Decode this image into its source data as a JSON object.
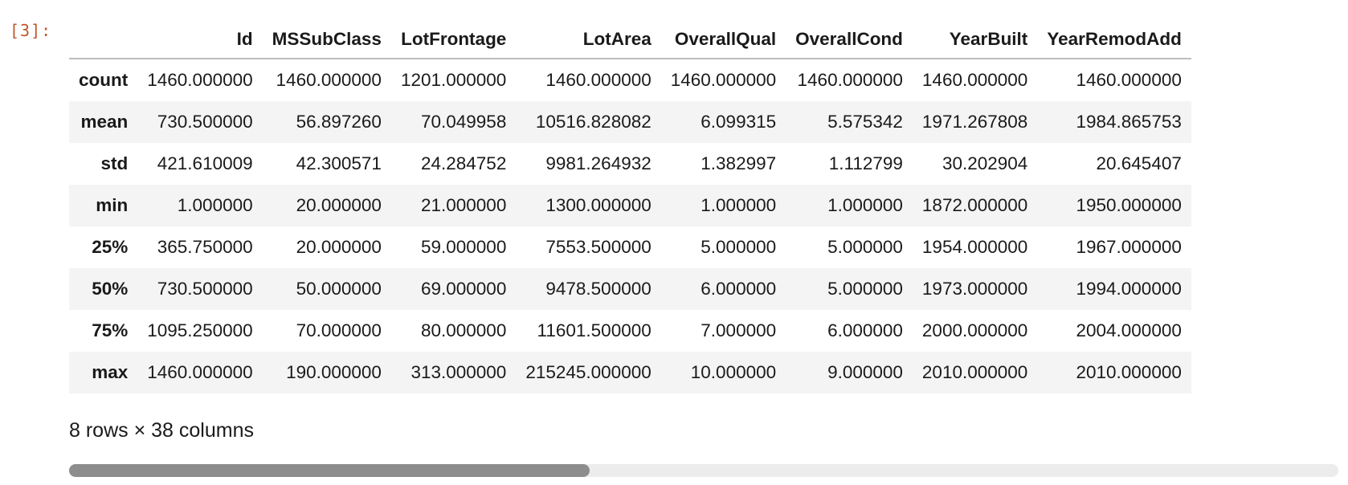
{
  "cell": {
    "prompt": "[3]:"
  },
  "table": {
    "index_header": "",
    "columns": [
      "Id",
      "MSSubClass",
      "LotFrontage",
      "LotArea",
      "OverallQual",
      "OverallCond",
      "YearBuilt",
      "YearRemodAdd"
    ],
    "rows": [
      {
        "label": "count",
        "values": [
          "1460.000000",
          "1460.000000",
          "1201.000000",
          "1460.000000",
          "1460.000000",
          "1460.000000",
          "1460.000000",
          "1460.000000"
        ]
      },
      {
        "label": "mean",
        "values": [
          "730.500000",
          "56.897260",
          "70.049958",
          "10516.828082",
          "6.099315",
          "5.575342",
          "1971.267808",
          "1984.865753"
        ]
      },
      {
        "label": "std",
        "values": [
          "421.610009",
          "42.300571",
          "24.284752",
          "9981.264932",
          "1.382997",
          "1.112799",
          "30.202904",
          "20.645407"
        ]
      },
      {
        "label": "min",
        "values": [
          "1.000000",
          "20.000000",
          "21.000000",
          "1300.000000",
          "1.000000",
          "1.000000",
          "1872.000000",
          "1950.000000"
        ]
      },
      {
        "label": "25%",
        "values": [
          "365.750000",
          "20.000000",
          "59.000000",
          "7553.500000",
          "5.000000",
          "5.000000",
          "1954.000000",
          "1967.000000"
        ]
      },
      {
        "label": "50%",
        "values": [
          "730.500000",
          "50.000000",
          "69.000000",
          "9478.500000",
          "6.000000",
          "5.000000",
          "1973.000000",
          "1994.000000"
        ]
      },
      {
        "label": "75%",
        "values": [
          "1095.250000",
          "70.000000",
          "80.000000",
          "11601.500000",
          "7.000000",
          "6.000000",
          "2000.000000",
          "2004.000000"
        ]
      },
      {
        "label": "max",
        "values": [
          "1460.000000",
          "190.000000",
          "313.000000",
          "215245.000000",
          "10.000000",
          "9.000000",
          "2010.000000",
          "2010.000000"
        ]
      }
    ],
    "summary": "8 rows × 38 columns"
  },
  "scrollbar": {
    "thumb_fraction": 0.41
  },
  "colors": {
    "prompt": "#c0562b",
    "stripe": "#f4f4f4",
    "scroll_track": "#ececec",
    "scroll_thumb": "#8d8d8d"
  }
}
